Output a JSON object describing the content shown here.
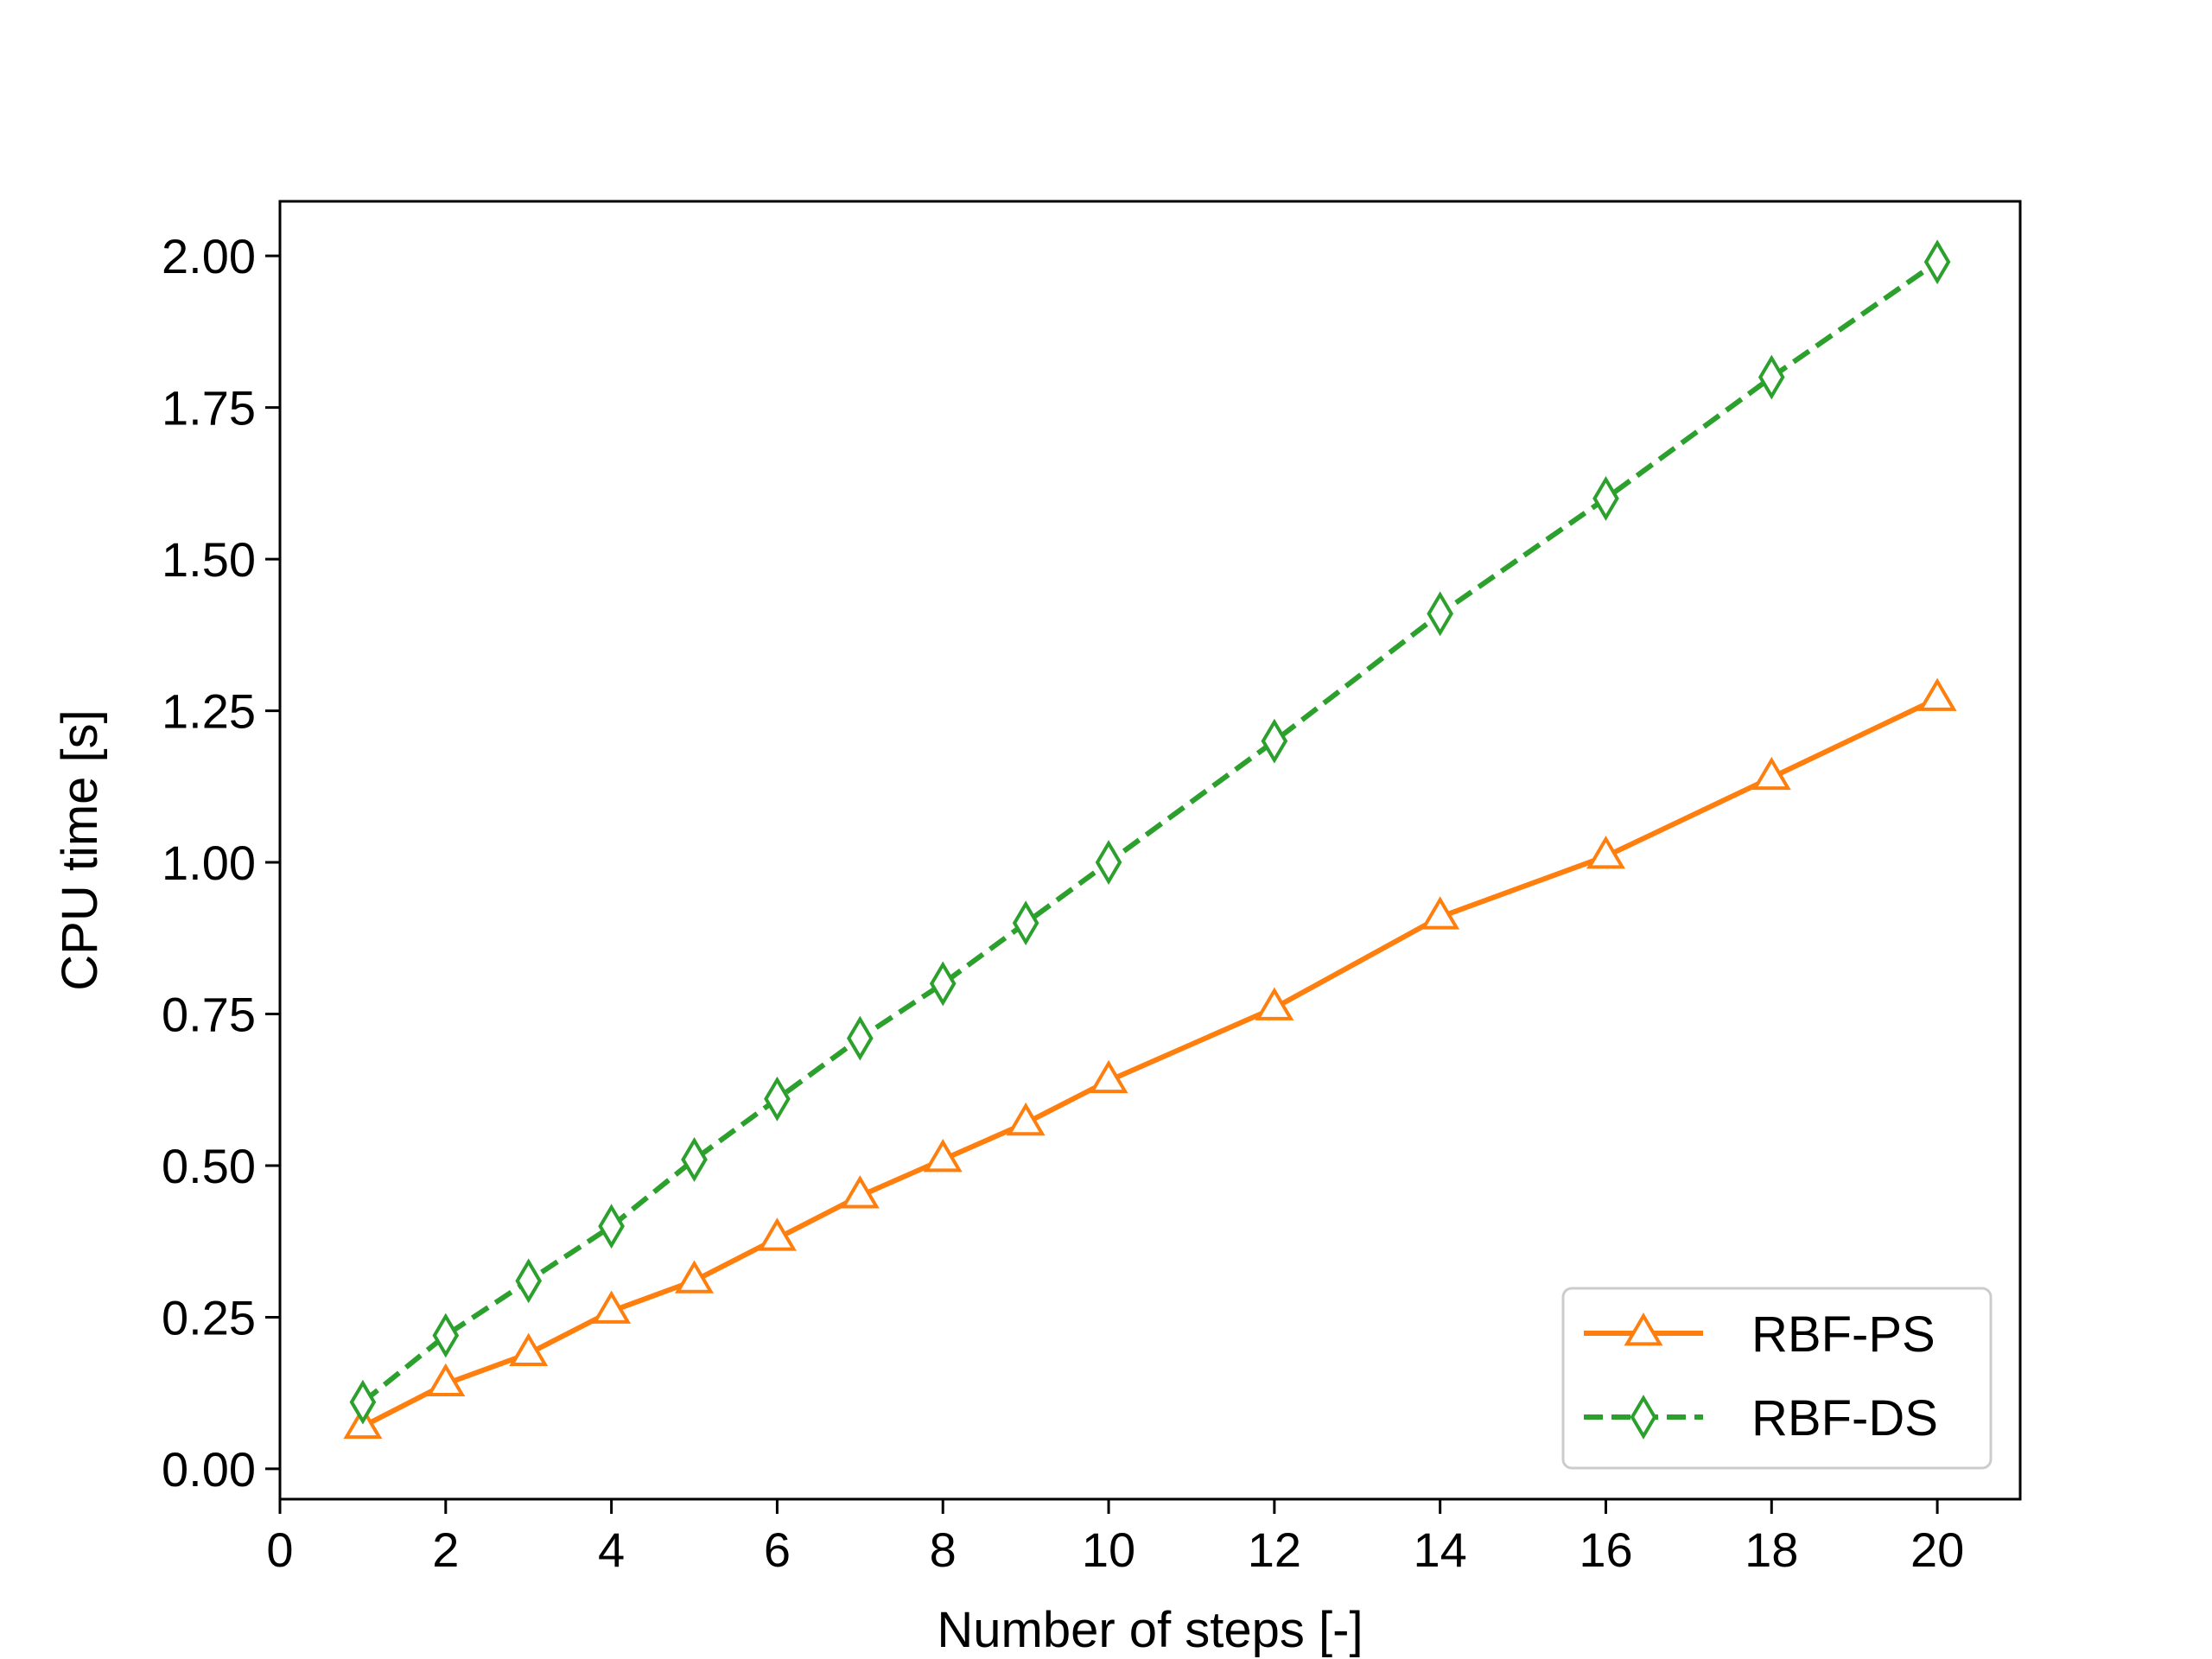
{
  "chart_data": {
    "type": "line",
    "title": "",
    "xlabel": "Number of steps [-]",
    "ylabel": "CPU time [s]",
    "xlim": [
      0,
      21
    ],
    "ylim": [
      -0.05,
      2.09
    ],
    "xticks": [
      0,
      2,
      4,
      6,
      8,
      10,
      12,
      14,
      16,
      18,
      20
    ],
    "xtick_labels": [
      "0",
      "2",
      "4",
      "6",
      "8",
      "10",
      "12",
      "14",
      "16",
      "18",
      "20"
    ],
    "yticks": [
      0,
      0.25,
      0.5,
      0.75,
      1.0,
      1.25,
      1.5,
      1.75,
      2.0
    ],
    "ytick_labels": [
      "0.00",
      "0.25",
      "0.50",
      "0.75",
      "1.00",
      "1.25",
      "1.50",
      "1.75",
      "2.00"
    ],
    "grid": false,
    "legend_position": "bottom-right",
    "series": [
      {
        "name": "RBF-PS",
        "color": "#ff7f0e",
        "linestyle": "solid",
        "marker": "triangle",
        "x": [
          1,
          2,
          3,
          4,
          5,
          6,
          7,
          8,
          9,
          10,
          12,
          14,
          16,
          18,
          20
        ],
        "y": [
          0.07,
          0.14,
          0.19,
          0.26,
          0.31,
          0.38,
          0.45,
          0.51,
          0.57,
          0.64,
          0.76,
          0.91,
          1.01,
          1.14,
          1.27
        ]
      },
      {
        "name": "RBF-DS",
        "color": "#2ca02c",
        "linestyle": "dashed",
        "marker": "thin-diamond",
        "x": [
          1,
          2,
          3,
          4,
          5,
          6,
          7,
          8,
          9,
          10,
          12,
          14,
          16,
          18,
          20
        ],
        "y": [
          0.11,
          0.22,
          0.31,
          0.4,
          0.51,
          0.61,
          0.71,
          0.8,
          0.9,
          1.0,
          1.2,
          1.41,
          1.6,
          1.8,
          1.99
        ]
      }
    ]
  }
}
